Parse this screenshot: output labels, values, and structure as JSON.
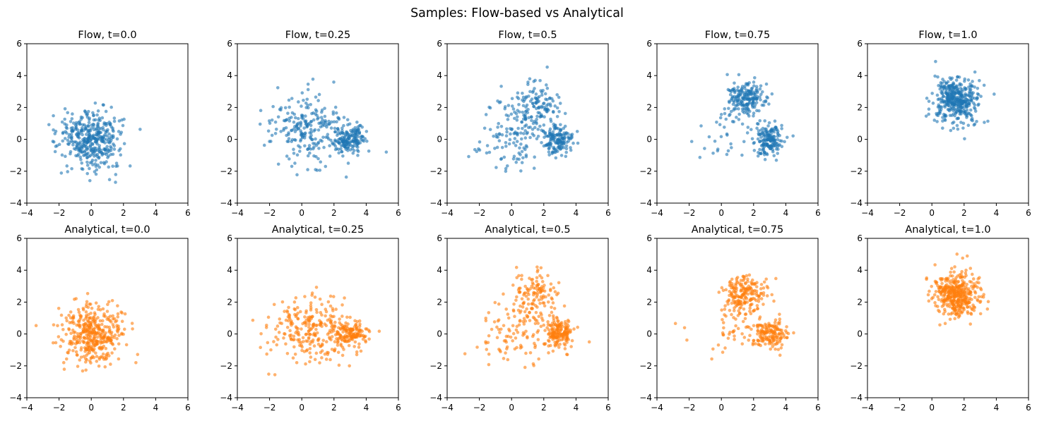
{
  "figure_title": "Samples: Flow-based vs Analytical",
  "colors": {
    "flow": "#1f77b4",
    "analytical": "#ff7f0e"
  },
  "chart_data": [
    {
      "type": "scatter",
      "title": "Flow, t=0.0",
      "xlim": [
        -4,
        6
      ],
      "ylim": [
        -4,
        6
      ],
      "xticks": [
        -4,
        -2,
        0,
        2,
        4,
        6
      ],
      "yticks": [
        -4,
        -2,
        0,
        2,
        4,
        6
      ],
      "xtick_labels": [
        "−4",
        "−2",
        "0",
        "2",
        "4",
        "6"
      ],
      "ytick_labels": [
        "−4",
        "−2",
        "0",
        "2",
        "4",
        "6"
      ],
      "color": "#1f77b4",
      "n_points": 400,
      "clusters": [
        {
          "center": [
            0.0,
            0.0
          ],
          "std": [
            0.95,
            0.95
          ],
          "weight": 1.0
        }
      ]
    },
    {
      "type": "scatter",
      "title": "Flow, t=0.25",
      "xlim": [
        -4,
        6
      ],
      "ylim": [
        -4,
        6
      ],
      "xticks": [
        -4,
        -2,
        0,
        2,
        4,
        6
      ],
      "yticks": [
        -4,
        -2,
        0,
        2,
        4,
        6
      ],
      "xtick_labels": [
        "−4",
        "−2",
        "0",
        "2",
        "4",
        "6"
      ],
      "ytick_labels": [
        "−4",
        "−2",
        "0",
        "2",
        "4",
        "6"
      ],
      "color": "#1f77b4",
      "n_points": 400,
      "clusters": [
        {
          "center": [
            0.5,
            0.6
          ],
          "std": [
            1.3,
            1.1
          ],
          "weight": 0.62
        },
        {
          "center": [
            3.0,
            0.0
          ],
          "std": [
            0.5,
            0.45
          ],
          "weight": 0.38
        }
      ]
    },
    {
      "type": "scatter",
      "title": "Flow, t=0.5",
      "xlim": [
        -4,
        6
      ],
      "ylim": [
        -4,
        6
      ],
      "xticks": [
        -4,
        -2,
        0,
        2,
        4,
        6
      ],
      "yticks": [
        -4,
        -2,
        0,
        2,
        4,
        6
      ],
      "xtick_labels": [
        "−4",
        "−2",
        "0",
        "2",
        "4",
        "6"
      ],
      "ytick_labels": [
        "−4",
        "−2",
        "0",
        "2",
        "4",
        "6"
      ],
      "color": "#1f77b4",
      "n_points": 400,
      "clusters": [
        {
          "center": [
            0.3,
            0.3
          ],
          "std": [
            1.2,
            1.2
          ],
          "weight": 0.3
        },
        {
          "center": [
            1.6,
            2.2
          ],
          "std": [
            0.7,
            0.8
          ],
          "weight": 0.3
        },
        {
          "center": [
            2.9,
            0.0
          ],
          "std": [
            0.45,
            0.45
          ],
          "weight": 0.4
        }
      ]
    },
    {
      "type": "scatter",
      "title": "Flow, t=0.75",
      "xlim": [
        -4,
        6
      ],
      "ylim": [
        -4,
        6
      ],
      "xticks": [
        -4,
        -2,
        0,
        2,
        4,
        6
      ],
      "yticks": [
        -4,
        -2,
        0,
        2,
        4,
        6
      ],
      "xtick_labels": [
        "−4",
        "−2",
        "0",
        "2",
        "4",
        "6"
      ],
      "ytick_labels": [
        "−4",
        "−2",
        "0",
        "2",
        "4",
        "6"
      ],
      "color": "#1f77b4",
      "n_points": 400,
      "clusters": [
        {
          "center": [
            1.5,
            2.5
          ],
          "std": [
            0.6,
            0.55
          ],
          "weight": 0.5
        },
        {
          "center": [
            3.0,
            0.0
          ],
          "std": [
            0.45,
            0.5
          ],
          "weight": 0.4
        },
        {
          "center": [
            0.5,
            0.3
          ],
          "std": [
            1.0,
            0.9
          ],
          "weight": 0.1
        }
      ]
    },
    {
      "type": "scatter",
      "title": "Flow, t=1.0",
      "xlim": [
        -4,
        6
      ],
      "ylim": [
        -4,
        6
      ],
      "xticks": [
        -4,
        -2,
        0,
        2,
        4,
        6
      ],
      "yticks": [
        -4,
        -2,
        0,
        2,
        4,
        6
      ],
      "xtick_labels": [
        "−4",
        "−2",
        "0",
        "2",
        "4",
        "6"
      ],
      "ytick_labels": [
        "−4",
        "−2",
        "0",
        "2",
        "4",
        "6"
      ],
      "color": "#1f77b4",
      "n_points": 400,
      "clusters": [
        {
          "center": [
            1.5,
            2.5
          ],
          "std": [
            0.7,
            0.7
          ],
          "weight": 1.0
        }
      ]
    },
    {
      "type": "scatter",
      "title": "Analytical, t=0.0",
      "xlim": [
        -4,
        6
      ],
      "ylim": [
        -4,
        6
      ],
      "xticks": [
        -4,
        -2,
        0,
        2,
        4,
        6
      ],
      "yticks": [
        -4,
        -2,
        0,
        2,
        4,
        6
      ],
      "xtick_labels": [
        "−4",
        "−2",
        "0",
        "2",
        "4",
        "6"
      ],
      "ytick_labels": [
        "−4",
        "−2",
        "0",
        "2",
        "4",
        "6"
      ],
      "color": "#ff7f0e",
      "n_points": 400,
      "clusters": [
        {
          "center": [
            0.0,
            0.0
          ],
          "std": [
            0.95,
            0.95
          ],
          "weight": 1.0
        }
      ]
    },
    {
      "type": "scatter",
      "title": "Analytical, t=0.25",
      "xlim": [
        -4,
        6
      ],
      "ylim": [
        -4,
        6
      ],
      "xticks": [
        -4,
        -2,
        0,
        2,
        4,
        6
      ],
      "yticks": [
        -4,
        -2,
        0,
        2,
        4,
        6
      ],
      "xtick_labels": [
        "−4",
        "−2",
        "0",
        "2",
        "4",
        "6"
      ],
      "ytick_labels": [
        "−4",
        "−2",
        "0",
        "2",
        "4",
        "6"
      ],
      "color": "#ff7f0e",
      "n_points": 400,
      "clusters": [
        {
          "center": [
            0.4,
            0.3
          ],
          "std": [
            1.2,
            1.1
          ],
          "weight": 0.65
        },
        {
          "center": [
            3.0,
            0.0
          ],
          "std": [
            0.5,
            0.45
          ],
          "weight": 0.35
        }
      ]
    },
    {
      "type": "scatter",
      "title": "Analytical, t=0.5",
      "xlim": [
        -4,
        6
      ],
      "ylim": [
        -4,
        6
      ],
      "xticks": [
        -4,
        -2,
        0,
        2,
        4,
        6
      ],
      "yticks": [
        -4,
        -2,
        0,
        2,
        4,
        6
      ],
      "xtick_labels": [
        "−4",
        "−2",
        "0",
        "2",
        "4",
        "6"
      ],
      "ytick_labels": [
        "−4",
        "−2",
        "0",
        "2",
        "4",
        "6"
      ],
      "color": "#ff7f0e",
      "n_points": 400,
      "clusters": [
        {
          "center": [
            0.3,
            0.2
          ],
          "std": [
            1.2,
            1.1
          ],
          "weight": 0.3
        },
        {
          "center": [
            1.5,
            2.3
          ],
          "std": [
            0.7,
            0.8
          ],
          "weight": 0.3
        },
        {
          "center": [
            3.0,
            0.0
          ],
          "std": [
            0.45,
            0.45
          ],
          "weight": 0.4
        }
      ]
    },
    {
      "type": "scatter",
      "title": "Analytical, t=0.75",
      "xlim": [
        -4,
        6
      ],
      "ylim": [
        -4,
        6
      ],
      "xticks": [
        -4,
        -2,
        0,
        2,
        4,
        6
      ],
      "yticks": [
        -4,
        -2,
        0,
        2,
        4,
        6
      ],
      "xtick_labels": [
        "−4",
        "−2",
        "0",
        "2",
        "4",
        "6"
      ],
      "ytick_labels": [
        "−4",
        "−2",
        "0",
        "2",
        "4",
        "6"
      ],
      "color": "#ff7f0e",
      "n_points": 400,
      "clusters": [
        {
          "center": [
            1.5,
            2.5
          ],
          "std": [
            0.6,
            0.6
          ],
          "weight": 0.48
        },
        {
          "center": [
            3.0,
            0.0
          ],
          "std": [
            0.5,
            0.5
          ],
          "weight": 0.4
        },
        {
          "center": [
            0.8,
            0.2
          ],
          "std": [
            1.0,
            1.0
          ],
          "weight": 0.12
        }
      ]
    },
    {
      "type": "scatter",
      "title": "Analytical, t=1.0",
      "xlim": [
        -4,
        6
      ],
      "ylim": [
        -4,
        6
      ],
      "xticks": [
        -4,
        -2,
        0,
        2,
        4,
        6
      ],
      "yticks": [
        -4,
        -2,
        0,
        2,
        4,
        6
      ],
      "xtick_labels": [
        "−4",
        "−2",
        "0",
        "2",
        "4",
        "6"
      ],
      "ytick_labels": [
        "−4",
        "−2",
        "0",
        "2",
        "4",
        "6"
      ],
      "color": "#ff7f0e",
      "n_points": 400,
      "clusters": [
        {
          "center": [
            1.5,
            2.5
          ],
          "std": [
            0.7,
            0.7
          ],
          "weight": 1.0
        }
      ]
    }
  ]
}
